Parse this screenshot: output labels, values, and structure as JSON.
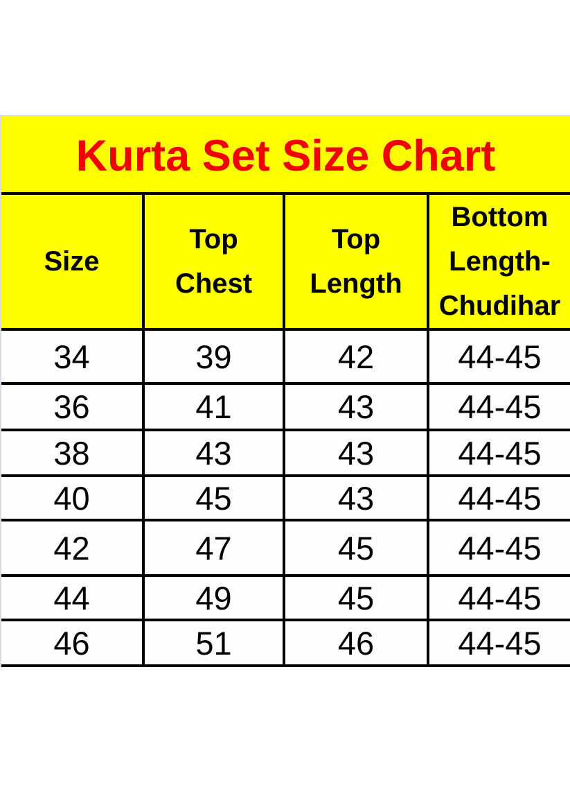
{
  "chart_data": {
    "type": "table",
    "title": "Kurta Set Size Chart",
    "columns": [
      "Size",
      "Top Chest",
      "Top Length",
      "Bottom Length-Chudihar"
    ],
    "rows": [
      [
        "34",
        "39",
        "42",
        "44-45"
      ],
      [
        "36",
        "41",
        "43",
        "44-45"
      ],
      [
        "38",
        "43",
        "43",
        "44-45"
      ],
      [
        "40",
        "45",
        "43",
        "44-45"
      ],
      [
        "42",
        "47",
        "45",
        "44-45"
      ],
      [
        "44",
        "49",
        "45",
        "44-45"
      ],
      [
        "46",
        "51",
        "46",
        "44-45"
      ]
    ],
    "layout": {
      "header_background": "#ffff00",
      "title_background": "#ffff00",
      "title_color": "#f10000",
      "body_background": "#ffffff",
      "grid_color": "#000000",
      "grid_on": true
    }
  }
}
